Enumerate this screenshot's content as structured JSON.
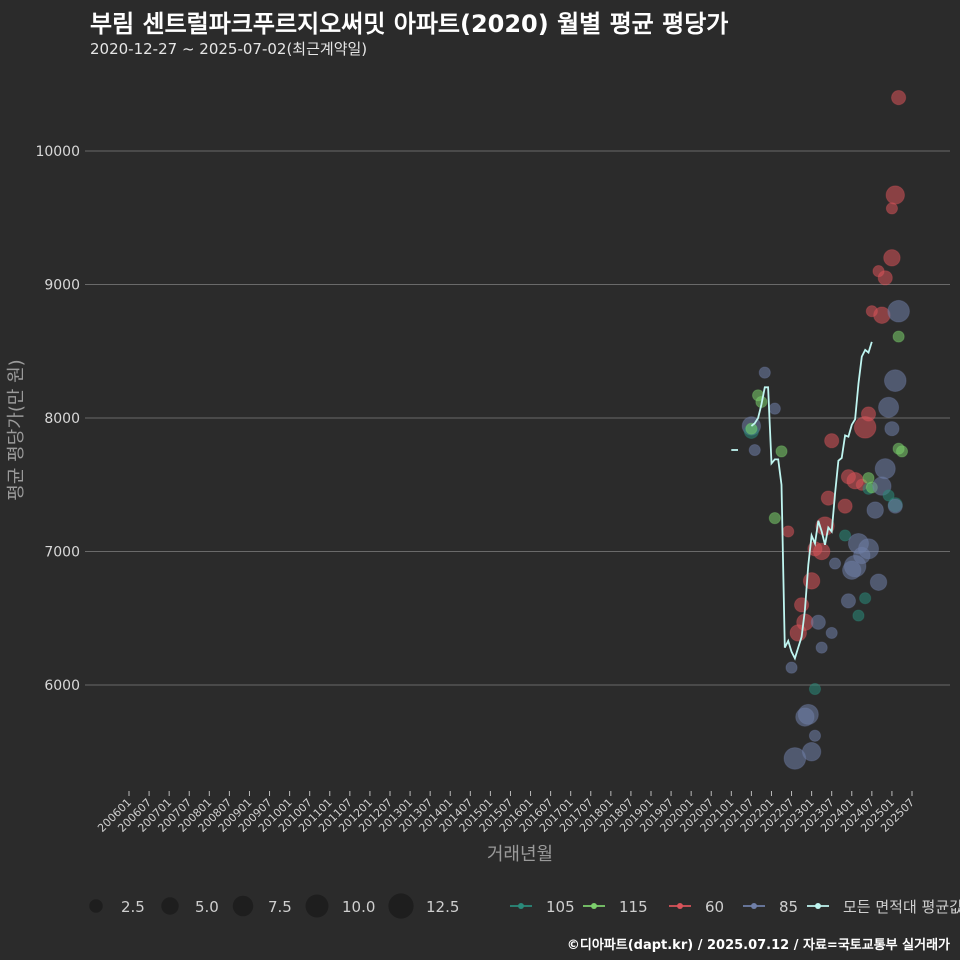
{
  "title": "부림 센트럴파크푸르지오써밋 아파트(2020) 월별 평균 평당가",
  "subtitle": "2020-12-27 ~ 2025-07-02(최근계약일)",
  "caption": "©디아파트(dapt.kr) / 2025.07.12 / 자료=국토교통부 실거래가",
  "colors": {
    "s105": "#2a8a7a",
    "s115": "#7ccf6c",
    "s60": "#d9535a",
    "s85": "#6f7fa8",
    "avg": "#bff5f0",
    "grid": "#6a6a6a",
    "background": "#2b2b2b"
  },
  "chart_data": {
    "type": "scatter",
    "title": "부림 센트럴파크푸르지오써밋 아파트(2020) 월별 평균 평당가",
    "xlabel": "거래년월",
    "ylabel": "평균 평당가(만 원)",
    "ylim": [
      5200,
      10550
    ],
    "y_ticks": [
      6000,
      7000,
      8000,
      9000,
      10000
    ],
    "x_tick_labels": [
      "200601",
      "200607",
      "200701",
      "200707",
      "200801",
      "200807",
      "200901",
      "200907",
      "201001",
      "201007",
      "201101",
      "201107",
      "201201",
      "201207",
      "201301",
      "201307",
      "201401",
      "201407",
      "201501",
      "201507",
      "201601",
      "201607",
      "201701",
      "201707",
      "201801",
      "201807",
      "201901",
      "201907",
      "202001",
      "202007",
      "202101",
      "202107",
      "202201",
      "202207",
      "202301",
      "202307",
      "202401",
      "202407",
      "202501",
      "202507"
    ],
    "x_range_months": [
      0,
      234
    ],
    "size_legend": [
      2.5,
      5.0,
      7.5,
      10.0,
      12.5
    ],
    "color_legend": [
      "105",
      "115",
      "60",
      "85",
      "모든 면적대 평균값"
    ],
    "points": [
      {
        "series": "85",
        "m": 186,
        "y": 7940,
        "n": 4
      },
      {
        "series": "105",
        "m": 186,
        "y": 7900,
        "n": 2
      },
      {
        "series": "115",
        "m": 186,
        "y": 7920,
        "n": 1
      },
      {
        "series": "85",
        "m": 187,
        "y": 7760,
        "n": 1
      },
      {
        "series": "115",
        "m": 188,
        "y": 8170,
        "n": 1
      },
      {
        "series": "115",
        "m": 189,
        "y": 8120,
        "n": 1
      },
      {
        "series": "85",
        "m": 190,
        "y": 8340,
        "n": 1
      },
      {
        "series": "85",
        "m": 193,
        "y": 8070,
        "n": 1
      },
      {
        "series": "115",
        "m": 193,
        "y": 7250,
        "n": 1
      },
      {
        "series": "115",
        "m": 195,
        "y": 7750,
        "n": 1
      },
      {
        "series": "60",
        "m": 197,
        "y": 7150,
        "n": 1
      },
      {
        "series": "85",
        "m": 198,
        "y": 6130,
        "n": 1
      },
      {
        "series": "85",
        "m": 199,
        "y": 5450,
        "n": 6
      },
      {
        "series": "60",
        "m": 200,
        "y": 6390,
        "n": 3
      },
      {
        "series": "60",
        "m": 201,
        "y": 6600,
        "n": 2
      },
      {
        "series": "60",
        "m": 202,
        "y": 6470,
        "n": 3
      },
      {
        "series": "85",
        "m": 202,
        "y": 5760,
        "n": 4
      },
      {
        "series": "85",
        "m": 203,
        "y": 5780,
        "n": 5
      },
      {
        "series": "85",
        "m": 204,
        "y": 5500,
        "n": 4
      },
      {
        "series": "60",
        "m": 204,
        "y": 6780,
        "n": 3
      },
      {
        "series": "85",
        "m": 205,
        "y": 5620,
        "n": 1
      },
      {
        "series": "105",
        "m": 205,
        "y": 5970,
        "n": 1
      },
      {
        "series": "85",
        "m": 206,
        "y": 6470,
        "n": 2
      },
      {
        "series": "60",
        "m": 205,
        "y": 7020,
        "n": 2
      },
      {
        "series": "85",
        "m": 207,
        "y": 6280,
        "n": 1
      },
      {
        "series": "60",
        "m": 207,
        "y": 7000,
        "n": 3
      },
      {
        "series": "60",
        "m": 208,
        "y": 7190,
        "n": 4
      },
      {
        "series": "60",
        "m": 209,
        "y": 7400,
        "n": 2
      },
      {
        "series": "60",
        "m": 210,
        "y": 7830,
        "n": 2
      },
      {
        "series": "85",
        "m": 210,
        "y": 6390,
        "n": 1
      },
      {
        "series": "85",
        "m": 211,
        "y": 6910,
        "n": 1
      },
      {
        "series": "105",
        "m": 214,
        "y": 7120,
        "n": 1
      },
      {
        "series": "60",
        "m": 214,
        "y": 7340,
        "n": 2
      },
      {
        "series": "85",
        "m": 215,
        "y": 6630,
        "n": 2
      },
      {
        "series": "60",
        "m": 215,
        "y": 7560,
        "n": 2
      },
      {
        "series": "85",
        "m": 216,
        "y": 6860,
        "n": 4
      },
      {
        "series": "60",
        "m": 217,
        "y": 7530,
        "n": 3
      },
      {
        "series": "85",
        "m": 217,
        "y": 6890,
        "n": 6
      },
      {
        "series": "85",
        "m": 218,
        "y": 7060,
        "n": 5
      },
      {
        "series": "105",
        "m": 218,
        "y": 6520,
        "n": 1
      },
      {
        "series": "60",
        "m": 219,
        "y": 7500,
        "n": 1
      },
      {
        "series": "85",
        "m": 219,
        "y": 6970,
        "n": 3
      },
      {
        "series": "60",
        "m": 220,
        "y": 7930,
        "n": 6
      },
      {
        "series": "60",
        "m": 221,
        "y": 8030,
        "n": 2
      },
      {
        "series": "115",
        "m": 221,
        "y": 7550,
        "n": 1
      },
      {
        "series": "105",
        "m": 221,
        "y": 7470,
        "n": 1
      },
      {
        "series": "85",
        "m": 221,
        "y": 7020,
        "n": 5
      },
      {
        "series": "105",
        "m": 220,
        "y": 6650,
        "n": 1
      },
      {
        "series": "60",
        "m": 222,
        "y": 8800,
        "n": 1
      },
      {
        "series": "115",
        "m": 222,
        "y": 7480,
        "n": 1
      },
      {
        "series": "85",
        "m": 223,
        "y": 7310,
        "n": 3
      },
      {
        "series": "85",
        "m": 224,
        "y": 6770,
        "n": 3
      },
      {
        "series": "60",
        "m": 224,
        "y": 9100,
        "n": 1
      },
      {
        "series": "60",
        "m": 225,
        "y": 8770,
        "n": 3
      },
      {
        "series": "85",
        "m": 225,
        "y": 7490,
        "n": 4
      },
      {
        "series": "85",
        "m": 226,
        "y": 7620,
        "n": 5
      },
      {
        "series": "60",
        "m": 226,
        "y": 9050,
        "n": 2
      },
      {
        "series": "105",
        "m": 227,
        "y": 7420,
        "n": 1
      },
      {
        "series": "85",
        "m": 227,
        "y": 8080,
        "n": 5
      },
      {
        "series": "60",
        "m": 228,
        "y": 9200,
        "n": 3
      },
      {
        "series": "85",
        "m": 228,
        "y": 7920,
        "n": 2
      },
      {
        "series": "60",
        "m": 228,
        "y": 9570,
        "n": 1
      },
      {
        "series": "105",
        "m": 229,
        "y": 7350,
        "n": 2
      },
      {
        "series": "60",
        "m": 229,
        "y": 9670,
        "n": 4
      },
      {
        "series": "85",
        "m": 229,
        "y": 8280,
        "n": 6
      },
      {
        "series": "85",
        "m": 229,
        "y": 7340,
        "n": 2
      },
      {
        "series": "60",
        "m": 230,
        "y": 10400,
        "n": 2
      },
      {
        "series": "115",
        "m": 230,
        "y": 8610,
        "n": 1
      },
      {
        "series": "85",
        "m": 230,
        "y": 8800,
        "n": 6
      },
      {
        "series": "115",
        "m": 230,
        "y": 7770,
        "n": 1
      },
      {
        "series": "115",
        "m": 231,
        "y": 7750,
        "n": 1
      }
    ],
    "avg_line": [
      {
        "m": 180,
        "y": 7760
      },
      {
        "m": 181,
        "y": 7760
      },
      {
        "m": 182,
        "y": 7760
      },
      {
        "m": 186,
        "y": 7940
      },
      {
        "m": 187,
        "y": 7960
      },
      {
        "m": 188,
        "y": 8000
      },
      {
        "m": 189,
        "y": 8100
      },
      {
        "m": 190,
        "y": 8230
      },
      {
        "m": 191,
        "y": 8230
      },
      {
        "m": 192,
        "y": 7660
      },
      {
        "m": 193,
        "y": 7690
      },
      {
        "m": 194,
        "y": 7690
      },
      {
        "m": 195,
        "y": 7500
      },
      {
        "m": 196,
        "y": 6280
      },
      {
        "m": 197,
        "y": 6330
      },
      {
        "m": 198,
        "y": 6250
      },
      {
        "m": 199,
        "y": 6200
      },
      {
        "m": 200,
        "y": 6280
      },
      {
        "m": 201,
        "y": 6360
      },
      {
        "m": 202,
        "y": 6560
      },
      {
        "m": 203,
        "y": 6900
      },
      {
        "m": 204,
        "y": 7120
      },
      {
        "m": 205,
        "y": 7060
      },
      {
        "m": 206,
        "y": 7230
      },
      {
        "m": 207,
        "y": 7150
      },
      {
        "m": 208,
        "y": 7050
      },
      {
        "m": 209,
        "y": 7180
      },
      {
        "m": 210,
        "y": 7150
      },
      {
        "m": 211,
        "y": 7430
      },
      {
        "m": 212,
        "y": 7680
      },
      {
        "m": 213,
        "y": 7700
      },
      {
        "m": 214,
        "y": 7870
      },
      {
        "m": 215,
        "y": 7860
      },
      {
        "m": 216,
        "y": 7950
      },
      {
        "m": 217,
        "y": 7990
      },
      {
        "m": 218,
        "y": 8260
      },
      {
        "m": 219,
        "y": 8460
      },
      {
        "m": 220,
        "y": 8510
      },
      {
        "m": 221,
        "y": 8490
      },
      {
        "m": 222,
        "y": 8570
      }
    ]
  }
}
